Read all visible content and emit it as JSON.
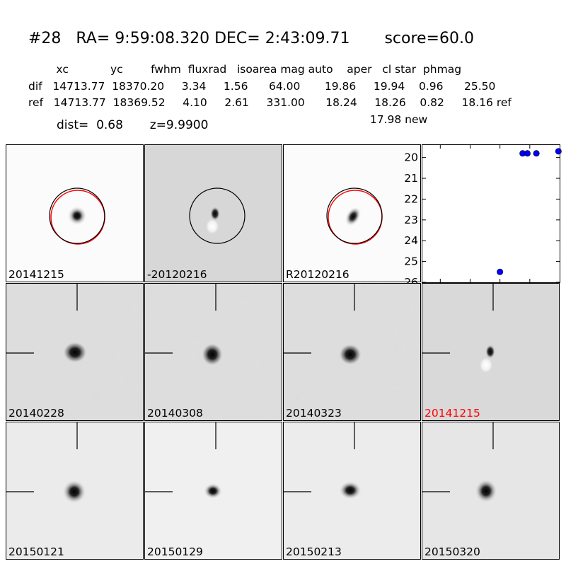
{
  "header": {
    "title": "#28   RA= 9:59:08.320 DEC= 2:43:09.71       score=60.0",
    "columns": "        xc            yc        fwhm  fluxrad   isoarea mag auto    aper   cl star  phmag",
    "dif_row": "dif   14713.77  18370.20     3.34     1.56      64.00       19.86     19.94    0.96      25.50",
    "ref_row": "ref   14713.77  18369.52     4.10     2.61     331.00      18.24     18.26    0.82     18.16 ref",
    "new_row": "                                                                                                  17.98 new",
    "dist_row": "dist=  0.68       z=9.9900"
  },
  "stamps": {
    "top": [
      {
        "label": "20141215",
        "style": "plain"
      },
      {
        "label": "-20120216",
        "style": "diff"
      },
      {
        "label": "R20120216",
        "style": "plain"
      }
    ],
    "middle": [
      {
        "label": "20140228",
        "style": "noisy"
      },
      {
        "label": "20140308",
        "style": "noisy"
      },
      {
        "label": "20140323",
        "style": "noisy"
      },
      {
        "label": "20141215",
        "style": "diff",
        "highlight": "#ff0000"
      }
    ],
    "bottom": [
      {
        "label": "20150121",
        "style": "smooth"
      },
      {
        "label": "20150129",
        "style": "smooth"
      },
      {
        "label": "20150213",
        "style": "smooth"
      },
      {
        "label": "20150320",
        "style": "smooth"
      }
    ]
  },
  "chart_data": {
    "type": "scatter",
    "title": "",
    "xlabel": "",
    "ylabel": "",
    "xlim": [
      -130,
      100
    ],
    "ylim": [
      26,
      19.4
    ],
    "xticks": [
      -100,
      -50,
      0,
      50
    ],
    "yticks": [
      20,
      21,
      22,
      23,
      24,
      25,
      26
    ],
    "points": [
      {
        "x": 0,
        "y": 25.5
      },
      {
        "x": 38,
        "y": 19.8
      },
      {
        "x": 46,
        "y": 19.8
      },
      {
        "x": 61,
        "y": 19.8
      },
      {
        "x": 98,
        "y": 19.7
      }
    ],
    "point_color": "#0000ff"
  }
}
